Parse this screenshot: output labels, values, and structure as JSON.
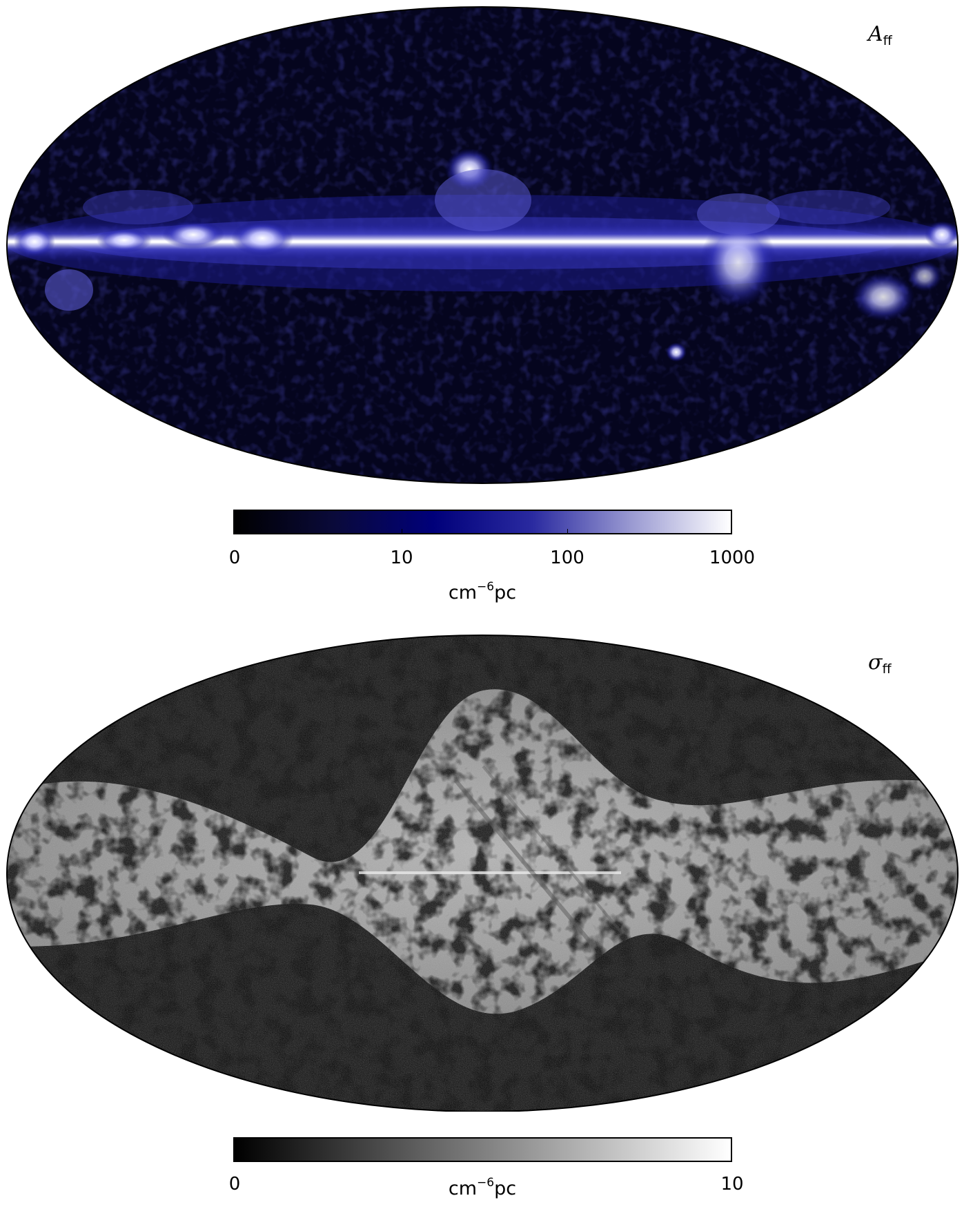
{
  "panels": {
    "top": {
      "label_main": "A",
      "label_sub": "ff",
      "colorbar": {
        "colors": [
          "#000000",
          "#0a0a3a",
          "#00007a",
          "#2a2aa0",
          "#9a9ad2",
          "#ffffff"
        ],
        "ticks": [
          "0",
          "10",
          "100",
          "1000"
        ],
        "unit_base": "cm",
        "unit_exp": "−6",
        "unit_tail": "pc"
      }
    },
    "bottom": {
      "label_main": "σ",
      "label_sub": "ff",
      "colorbar": {
        "colors": [
          "#000000",
          "#ffffff"
        ],
        "ticks": [
          "0",
          "10"
        ],
        "unit_base": "cm",
        "unit_exp": "−6",
        "unit_tail": "pc"
      }
    }
  }
}
